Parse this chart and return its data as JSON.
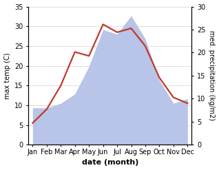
{
  "months": [
    "Jan",
    "Feb",
    "Mar",
    "Apr",
    "May",
    "Jun",
    "Jul",
    "Aug",
    "Sep",
    "Oct",
    "Nov",
    "Dec"
  ],
  "temp": [
    5.5,
    9.0,
    15.0,
    23.5,
    22.5,
    30.5,
    28.5,
    29.5,
    25.0,
    17.0,
    12.0,
    10.5
  ],
  "precip": [
    8.0,
    8.0,
    9.0,
    11.0,
    17.0,
    25.0,
    24.0,
    28.0,
    23.0,
    14.0,
    9.0,
    10.0
  ],
  "temp_color": "#c0392b",
  "precip_fill_color": "#b8c4e8",
  "left_ylim": [
    0,
    35
  ],
  "right_ylim": [
    0,
    30
  ],
  "left_yticks": [
    0,
    5,
    10,
    15,
    20,
    25,
    30,
    35
  ],
  "right_yticks": [
    0,
    5,
    10,
    15,
    20,
    25,
    30
  ],
  "ylabel_left": "max temp (C)",
  "ylabel_right": "med. precipitation (kg/m2)",
  "xlabel": "date (month)",
  "background_color": "#ffffff",
  "grid_color": "#d0d0d0",
  "figsize": [
    3.18,
    2.47
  ],
  "dpi": 100
}
